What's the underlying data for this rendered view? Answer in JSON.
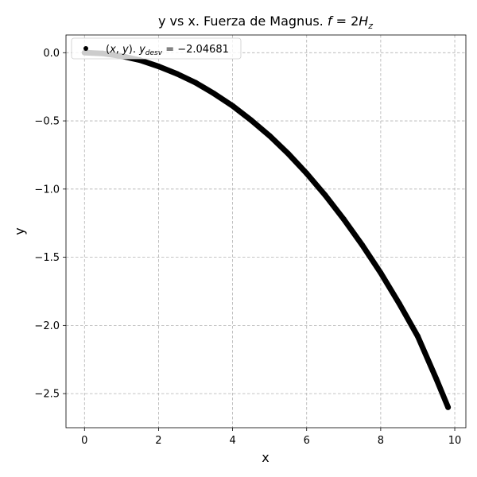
{
  "chart_data": {
    "type": "scatter",
    "title": "y vs x. Fuerza de Magnus. f = 2H_z",
    "title_parts": {
      "main": "y vs x. Fuerza de Magnus. ",
      "f": "f",
      "eq": " = 2",
      "H": "H",
      "sub": "z"
    },
    "xlabel": "x",
    "ylabel": "y",
    "xlim": [
      -0.5,
      10.3
    ],
    "ylim": [
      -2.75,
      0.13
    ],
    "xticks": [
      0,
      2,
      4,
      6,
      8,
      10
    ],
    "yticks": [
      0.0,
      -0.5,
      -1.0,
      -1.5,
      -2.0,
      -2.5
    ],
    "xtick_labels": [
      "0",
      "2",
      "4",
      "6",
      "8",
      "10"
    ],
    "ytick_labels": [
      "0.0",
      "−0.5",
      "−1.0",
      "−1.5",
      "−2.0",
      "−2.5"
    ],
    "grid": true,
    "legend_position": "top-left",
    "marker_color": "#000000",
    "series": [
      {
        "legend_label": "(x, y). y_desv = −2.04681",
        "label_parts": {
          "pre": "(",
          "x": "x",
          "comma": ", ",
          "y": "y",
          "mid": "). ",
          "y2": "y",
          "sub": "desv",
          "value": " = −2.04681"
        },
        "x": [
          0.0,
          0.5,
          1.0,
          1.5,
          2.0,
          2.5,
          3.0,
          3.5,
          4.0,
          4.5,
          5.0,
          5.5,
          6.0,
          6.5,
          7.0,
          7.5,
          8.0,
          8.5,
          9.0,
          9.5,
          9.82
        ],
        "y": [
          0.0,
          -0.006,
          -0.025,
          -0.055,
          -0.1,
          -0.155,
          -0.22,
          -0.3,
          -0.39,
          -0.495,
          -0.61,
          -0.74,
          -0.885,
          -1.045,
          -1.22,
          -1.41,
          -1.615,
          -1.84,
          -2.08,
          -2.39,
          -2.6
        ]
      }
    ]
  }
}
